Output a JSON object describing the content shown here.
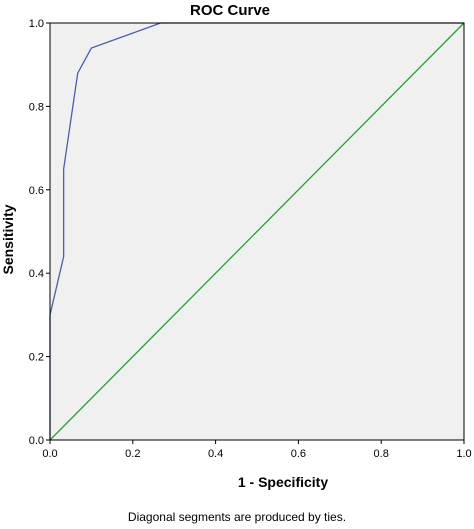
{
  "chart_data": {
    "type": "line",
    "title": "ROC Curve",
    "xlabel": "1 - Specificity",
    "ylabel": "Sensitivity",
    "xlim": [
      0,
      1
    ],
    "ylim": [
      0,
      1
    ],
    "x_ticks": [
      "0.0",
      "0.2",
      "0.4",
      "0.6",
      "0.8",
      "1.0"
    ],
    "y_ticks": [
      "0.0",
      "0.2",
      "0.4",
      "0.6",
      "0.8",
      "1.0"
    ],
    "grid": false,
    "legend": "none",
    "background_color": "#f0f0f0",
    "series": [
      {
        "color": "#4a5ea8",
        "x": [
          0.0,
          0.0,
          0.0,
          0.033,
          0.033,
          0.067,
          0.1,
          0.1,
          0.267,
          1.0
        ],
        "y": [
          0.0,
          0.15,
          0.3,
          0.44,
          0.65,
          0.88,
          0.94,
          0.94,
          1.0,
          1.0
        ]
      },
      {
        "color": "#2aa02a",
        "x": [
          0,
          1
        ],
        "y": [
          0,
          1
        ]
      }
    ]
  },
  "footnote": "Diagonal segments are produced by ties."
}
